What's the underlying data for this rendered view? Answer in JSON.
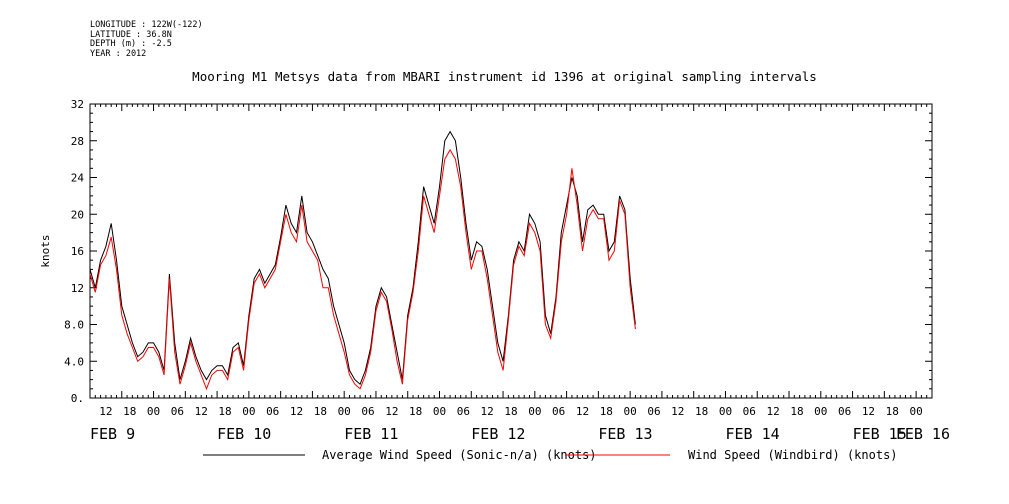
{
  "header": {
    "longitude": "LONGITUDE : 122W(-122)",
    "latitude": "LATITUDE : 36.8N",
    "depth": "DEPTH (m) : -2.5",
    "year": "YEAR : 2012"
  },
  "chart_data": {
    "type": "line",
    "title": "Mooring M1 Metsys data from MBARI instrument id 1396 at original sampling intervals",
    "ylabel": "knots",
    "ylim": [
      0,
      32
    ],
    "y_ticks": [
      "0.",
      "4.0",
      "8.0",
      "12",
      "16",
      "20",
      "24",
      "28",
      "32"
    ],
    "xlim_hours": [
      0,
      159
    ],
    "hour_tick_labels": [
      "12",
      "18",
      "00",
      "06",
      "12",
      "18",
      "00",
      "06",
      "12",
      "18",
      "00",
      "06",
      "12",
      "18",
      "00",
      "06",
      "12",
      "18",
      "00",
      "06",
      "12",
      "18",
      "00",
      "06",
      "12",
      "18",
      "00",
      "06",
      "12",
      "18",
      "00",
      "06",
      "12",
      "18",
      "00"
    ],
    "date_labels": [
      {
        "text": "FEB  9",
        "hour": 0
      },
      {
        "text": "FEB 10",
        "hour": 24
      },
      {
        "text": "FEB 11",
        "hour": 48
      },
      {
        "text": "FEB 12",
        "hour": 72
      },
      {
        "text": "FEB 13",
        "hour": 96
      },
      {
        "text": "FEB 14",
        "hour": 120
      },
      {
        "text": "FEB 15",
        "hour": 144
      },
      {
        "text": "FEB 16",
        "hour": 159
      }
    ],
    "series": [
      {
        "name": "Average Wind Speed (Sonic-n/a) (knots)",
        "color": "#000000",
        "points": [
          [
            0,
            14
          ],
          [
            1,
            12
          ],
          [
            2,
            15
          ],
          [
            3,
            16.5
          ],
          [
            4,
            19
          ],
          [
            5,
            15
          ],
          [
            6,
            10
          ],
          [
            7,
            8
          ],
          [
            8,
            6
          ],
          [
            9,
            4.5
          ],
          [
            10,
            5
          ],
          [
            11,
            6
          ],
          [
            12,
            6
          ],
          [
            13,
            5
          ],
          [
            14,
            3
          ],
          [
            15,
            13.5
          ],
          [
            16,
            6
          ],
          [
            17,
            2
          ],
          [
            18,
            4
          ],
          [
            19,
            6.5
          ],
          [
            20,
            4.5
          ],
          [
            21,
            3
          ],
          [
            22,
            2
          ],
          [
            23,
            3
          ],
          [
            24,
            3.5
          ],
          [
            25,
            3.5
          ],
          [
            26,
            2.5
          ],
          [
            27,
            5.5
          ],
          [
            28,
            6
          ],
          [
            29,
            3.5
          ],
          [
            30,
            9
          ],
          [
            31,
            13
          ],
          [
            32,
            14
          ],
          [
            33,
            12.5
          ],
          [
            34,
            13.5
          ],
          [
            35,
            14.5
          ],
          [
            36,
            17.5
          ],
          [
            37,
            21
          ],
          [
            38,
            19
          ],
          [
            39,
            18
          ],
          [
            40,
            22
          ],
          [
            41,
            18
          ],
          [
            42,
            17
          ],
          [
            43,
            15.5
          ],
          [
            44,
            14
          ],
          [
            45,
            13
          ],
          [
            46,
            10
          ],
          [
            47,
            8
          ],
          [
            48,
            6
          ],
          [
            49,
            3
          ],
          [
            50,
            2
          ],
          [
            51,
            1.5
          ],
          [
            52,
            3
          ],
          [
            53,
            5.5
          ],
          [
            54,
            10
          ],
          [
            55,
            12
          ],
          [
            56,
            11
          ],
          [
            57,
            8
          ],
          [
            58,
            5
          ],
          [
            59,
            2
          ],
          [
            60,
            9
          ],
          [
            61,
            12
          ],
          [
            62,
            17
          ],
          [
            63,
            23
          ],
          [
            64,
            21
          ],
          [
            65,
            19
          ],
          [
            66,
            23
          ],
          [
            67,
            28
          ],
          [
            68,
            29
          ],
          [
            69,
            28
          ],
          [
            70,
            24
          ],
          [
            71,
            19
          ],
          [
            72,
            15
          ],
          [
            73,
            17
          ],
          [
            74,
            16.5
          ],
          [
            75,
            14
          ],
          [
            76,
            10
          ],
          [
            77,
            6
          ],
          [
            78,
            4
          ],
          [
            79,
            9
          ],
          [
            80,
            15
          ],
          [
            81,
            17
          ],
          [
            82,
            16
          ],
          [
            83,
            20
          ],
          [
            84,
            19
          ],
          [
            85,
            17
          ],
          [
            86,
            9
          ],
          [
            87,
            7
          ],
          [
            88,
            11
          ],
          [
            89,
            18
          ],
          [
            90,
            21
          ],
          [
            91,
            24
          ],
          [
            92,
            22
          ],
          [
            93,
            17
          ],
          [
            94,
            20.5
          ],
          [
            95,
            21
          ],
          [
            96,
            20
          ],
          [
            97,
            20
          ],
          [
            98,
            16
          ],
          [
            99,
            17
          ],
          [
            100,
            22
          ],
          [
            101,
            20.5
          ],
          [
            102,
            13
          ],
          [
            103,
            8
          ]
        ]
      },
      {
        "name": "Wind Speed (Windbird) (knots)",
        "color": "#ff0000",
        "points": [
          [
            0,
            13.5
          ],
          [
            1,
            11.5
          ],
          [
            2,
            14.5
          ],
          [
            3,
            15.5
          ],
          [
            4,
            17.5
          ],
          [
            5,
            14
          ],
          [
            6,
            9
          ],
          [
            7,
            7
          ],
          [
            8,
            5.5
          ],
          [
            9,
            4
          ],
          [
            10,
            4.5
          ],
          [
            11,
            5.5
          ],
          [
            12,
            5.5
          ],
          [
            13,
            4.5
          ],
          [
            14,
            2.5
          ],
          [
            15,
            13
          ],
          [
            16,
            5
          ],
          [
            17,
            1.5
          ],
          [
            18,
            3.5
          ],
          [
            19,
            6
          ],
          [
            20,
            4
          ],
          [
            21,
            2.5
          ],
          [
            22,
            1
          ],
          [
            23,
            2.5
          ],
          [
            24,
            3
          ],
          [
            25,
            3
          ],
          [
            26,
            2
          ],
          [
            27,
            5
          ],
          [
            28,
            5.5
          ],
          [
            29,
            3
          ],
          [
            30,
            8.5
          ],
          [
            31,
            12.5
          ],
          [
            32,
            13.5
          ],
          [
            33,
            12
          ],
          [
            34,
            13
          ],
          [
            35,
            14
          ],
          [
            36,
            17
          ],
          [
            37,
            20
          ],
          [
            38,
            18
          ],
          [
            39,
            17
          ],
          [
            40,
            21
          ],
          [
            41,
            17
          ],
          [
            42,
            16
          ],
          [
            43,
            15
          ],
          [
            44,
            12
          ],
          [
            45,
            12
          ],
          [
            46,
            9
          ],
          [
            47,
            7
          ],
          [
            48,
            5
          ],
          [
            49,
            2.5
          ],
          [
            50,
            1.5
          ],
          [
            51,
            1
          ],
          [
            52,
            2.5
          ],
          [
            53,
            5
          ],
          [
            54,
            9.5
          ],
          [
            55,
            11.5
          ],
          [
            56,
            10.5
          ],
          [
            57,
            7.5
          ],
          [
            58,
            4
          ],
          [
            59,
            1.5
          ],
          [
            60,
            8.5
          ],
          [
            61,
            11.5
          ],
          [
            62,
            16
          ],
          [
            63,
            22
          ],
          [
            64,
            20
          ],
          [
            65,
            18
          ],
          [
            66,
            22
          ],
          [
            67,
            26
          ],
          [
            68,
            27
          ],
          [
            69,
            26
          ],
          [
            70,
            23
          ],
          [
            71,
            18
          ],
          [
            72,
            14
          ],
          [
            73,
            16
          ],
          [
            74,
            16
          ],
          [
            75,
            13
          ],
          [
            76,
            9
          ],
          [
            77,
            5
          ],
          [
            78,
            3
          ],
          [
            79,
            8.5
          ],
          [
            80,
            14.5
          ],
          [
            81,
            16.5
          ],
          [
            82,
            15.5
          ],
          [
            83,
            19
          ],
          [
            84,
            18
          ],
          [
            85,
            16
          ],
          [
            86,
            8
          ],
          [
            87,
            6.5
          ],
          [
            88,
            10.5
          ],
          [
            89,
            17
          ],
          [
            90,
            20
          ],
          [
            91,
            25
          ],
          [
            92,
            21
          ],
          [
            93,
            16
          ],
          [
            94,
            19.5
          ],
          [
            95,
            20.5
          ],
          [
            96,
            19.5
          ],
          [
            97,
            19.5
          ],
          [
            98,
            15
          ],
          [
            99,
            16
          ],
          [
            100,
            21.5
          ],
          [
            101,
            20
          ],
          [
            102,
            12
          ],
          [
            103,
            7.5
          ]
        ]
      }
    ],
    "legend_placement": "bottom"
  }
}
